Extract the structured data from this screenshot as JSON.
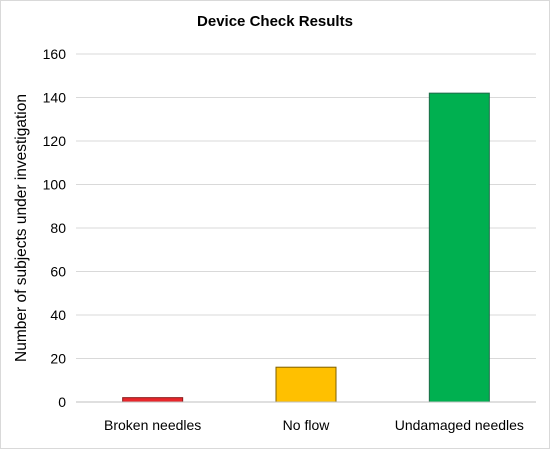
{
  "chart_data": {
    "type": "bar",
    "title": "Device Check Results",
    "xlabel": "",
    "ylabel": "Number of subjects under investigation",
    "categories": [
      "Broken needles",
      "No flow",
      "Undamaged needles"
    ],
    "values": [
      2,
      16,
      142
    ],
    "bar_colors": [
      "#e8262b",
      "#ffc000",
      "#00b050"
    ],
    "bar_edge_colors": [
      "#8b1a1a",
      "#7f6000",
      "#1f6b4a"
    ],
    "ylim": [
      0,
      160
    ],
    "yticks": [
      0,
      20,
      40,
      60,
      80,
      100,
      120,
      140,
      160
    ],
    "grid": true,
    "legend": "none"
  }
}
